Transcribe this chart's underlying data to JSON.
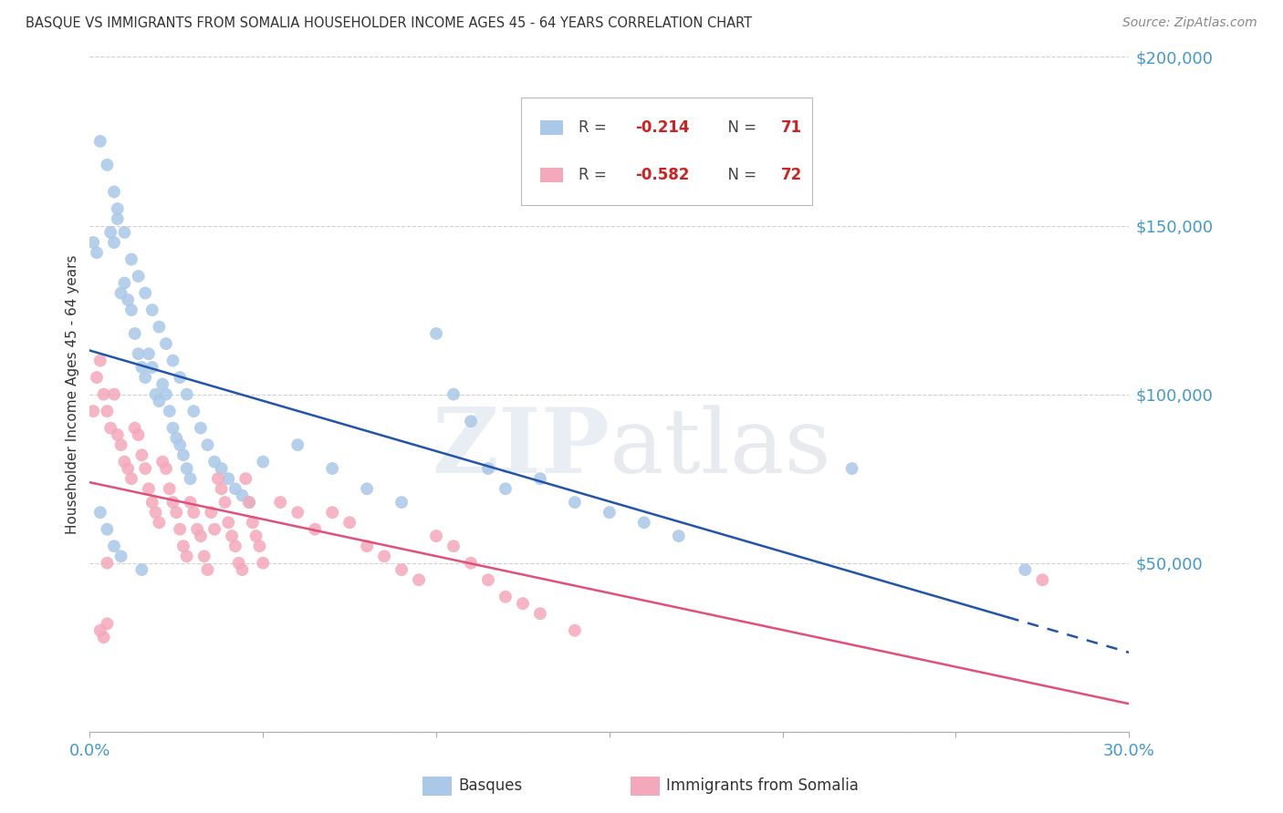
{
  "title": "BASQUE VS IMMIGRANTS FROM SOMALIA HOUSEHOLDER INCOME AGES 45 - 64 YEARS CORRELATION CHART",
  "source": "Source: ZipAtlas.com",
  "ylabel": "Householder Income Ages 45 - 64 years",
  "xlim": [
    0.0,
    0.3
  ],
  "ylim": [
    0,
    200000
  ],
  "xticks": [
    0.0,
    0.05,
    0.1,
    0.15,
    0.2,
    0.25,
    0.3
  ],
  "yticks": [
    0,
    50000,
    100000,
    150000,
    200000
  ],
  "ytick_labels": [
    "",
    "$50,000",
    "$100,000",
    "$150,000",
    "$200,000"
  ],
  "basque_color": "#aac8e8",
  "somalia_color": "#f4a8bb",
  "basque_line_color": "#2255aa",
  "somalia_line_color": "#e0507a",
  "R_basque": -0.214,
  "N_basque": 71,
  "R_somalia": -0.582,
  "N_somalia": 72,
  "watermark": "ZIPatlas",
  "background_color": "#ffffff",
  "basque_points": [
    [
      0.001,
      145000
    ],
    [
      0.002,
      142000
    ],
    [
      0.003,
      175000
    ],
    [
      0.005,
      168000
    ],
    [
      0.006,
      148000
    ],
    [
      0.007,
      145000
    ],
    [
      0.008,
      152000
    ],
    [
      0.009,
      130000
    ],
    [
      0.01,
      133000
    ],
    [
      0.011,
      128000
    ],
    [
      0.012,
      125000
    ],
    [
      0.013,
      118000
    ],
    [
      0.014,
      112000
    ],
    [
      0.015,
      108000
    ],
    [
      0.016,
      105000
    ],
    [
      0.017,
      112000
    ],
    [
      0.018,
      108000
    ],
    [
      0.019,
      100000
    ],
    [
      0.02,
      98000
    ],
    [
      0.021,
      103000
    ],
    [
      0.022,
      100000
    ],
    [
      0.023,
      95000
    ],
    [
      0.024,
      90000
    ],
    [
      0.025,
      87000
    ],
    [
      0.026,
      85000
    ],
    [
      0.027,
      82000
    ],
    [
      0.028,
      78000
    ],
    [
      0.029,
      75000
    ],
    [
      0.007,
      160000
    ],
    [
      0.008,
      155000
    ],
    [
      0.01,
      148000
    ],
    [
      0.012,
      140000
    ],
    [
      0.014,
      135000
    ],
    [
      0.016,
      130000
    ],
    [
      0.018,
      125000
    ],
    [
      0.02,
      120000
    ],
    [
      0.022,
      115000
    ],
    [
      0.024,
      110000
    ],
    [
      0.026,
      105000
    ],
    [
      0.028,
      100000
    ],
    [
      0.03,
      95000
    ],
    [
      0.032,
      90000
    ],
    [
      0.034,
      85000
    ],
    [
      0.036,
      80000
    ],
    [
      0.038,
      78000
    ],
    [
      0.04,
      75000
    ],
    [
      0.042,
      72000
    ],
    [
      0.044,
      70000
    ],
    [
      0.046,
      68000
    ],
    [
      0.05,
      80000
    ],
    [
      0.06,
      85000
    ],
    [
      0.07,
      78000
    ],
    [
      0.08,
      72000
    ],
    [
      0.09,
      68000
    ],
    [
      0.1,
      118000
    ],
    [
      0.105,
      100000
    ],
    [
      0.11,
      92000
    ],
    [
      0.115,
      78000
    ],
    [
      0.12,
      72000
    ],
    [
      0.13,
      75000
    ],
    [
      0.14,
      68000
    ],
    [
      0.15,
      65000
    ],
    [
      0.16,
      62000
    ],
    [
      0.17,
      58000
    ],
    [
      0.003,
      65000
    ],
    [
      0.005,
      60000
    ],
    [
      0.007,
      55000
    ],
    [
      0.009,
      52000
    ],
    [
      0.015,
      48000
    ],
    [
      0.22,
      78000
    ],
    [
      0.27,
      48000
    ]
  ],
  "somalia_points": [
    [
      0.001,
      95000
    ],
    [
      0.002,
      105000
    ],
    [
      0.003,
      110000
    ],
    [
      0.004,
      100000
    ],
    [
      0.005,
      95000
    ],
    [
      0.006,
      90000
    ],
    [
      0.007,
      100000
    ],
    [
      0.008,
      88000
    ],
    [
      0.009,
      85000
    ],
    [
      0.01,
      80000
    ],
    [
      0.011,
      78000
    ],
    [
      0.012,
      75000
    ],
    [
      0.013,
      90000
    ],
    [
      0.014,
      88000
    ],
    [
      0.015,
      82000
    ],
    [
      0.016,
      78000
    ],
    [
      0.017,
      72000
    ],
    [
      0.018,
      68000
    ],
    [
      0.019,
      65000
    ],
    [
      0.02,
      62000
    ],
    [
      0.021,
      80000
    ],
    [
      0.022,
      78000
    ],
    [
      0.023,
      72000
    ],
    [
      0.024,
      68000
    ],
    [
      0.025,
      65000
    ],
    [
      0.026,
      60000
    ],
    [
      0.027,
      55000
    ],
    [
      0.028,
      52000
    ],
    [
      0.029,
      68000
    ],
    [
      0.03,
      65000
    ],
    [
      0.031,
      60000
    ],
    [
      0.032,
      58000
    ],
    [
      0.033,
      52000
    ],
    [
      0.034,
      48000
    ],
    [
      0.035,
      65000
    ],
    [
      0.036,
      60000
    ],
    [
      0.037,
      75000
    ],
    [
      0.038,
      72000
    ],
    [
      0.039,
      68000
    ],
    [
      0.04,
      62000
    ],
    [
      0.041,
      58000
    ],
    [
      0.042,
      55000
    ],
    [
      0.043,
      50000
    ],
    [
      0.044,
      48000
    ],
    [
      0.045,
      75000
    ],
    [
      0.046,
      68000
    ],
    [
      0.047,
      62000
    ],
    [
      0.048,
      58000
    ],
    [
      0.049,
      55000
    ],
    [
      0.05,
      50000
    ],
    [
      0.055,
      68000
    ],
    [
      0.06,
      65000
    ],
    [
      0.065,
      60000
    ],
    [
      0.07,
      65000
    ],
    [
      0.075,
      62000
    ],
    [
      0.08,
      55000
    ],
    [
      0.085,
      52000
    ],
    [
      0.09,
      48000
    ],
    [
      0.095,
      45000
    ],
    [
      0.1,
      58000
    ],
    [
      0.105,
      55000
    ],
    [
      0.11,
      50000
    ],
    [
      0.115,
      45000
    ],
    [
      0.12,
      40000
    ],
    [
      0.125,
      38000
    ],
    [
      0.13,
      35000
    ],
    [
      0.14,
      30000
    ],
    [
      0.003,
      30000
    ],
    [
      0.004,
      28000
    ],
    [
      0.005,
      32000
    ],
    [
      0.275,
      45000
    ],
    [
      0.005,
      50000
    ]
  ]
}
